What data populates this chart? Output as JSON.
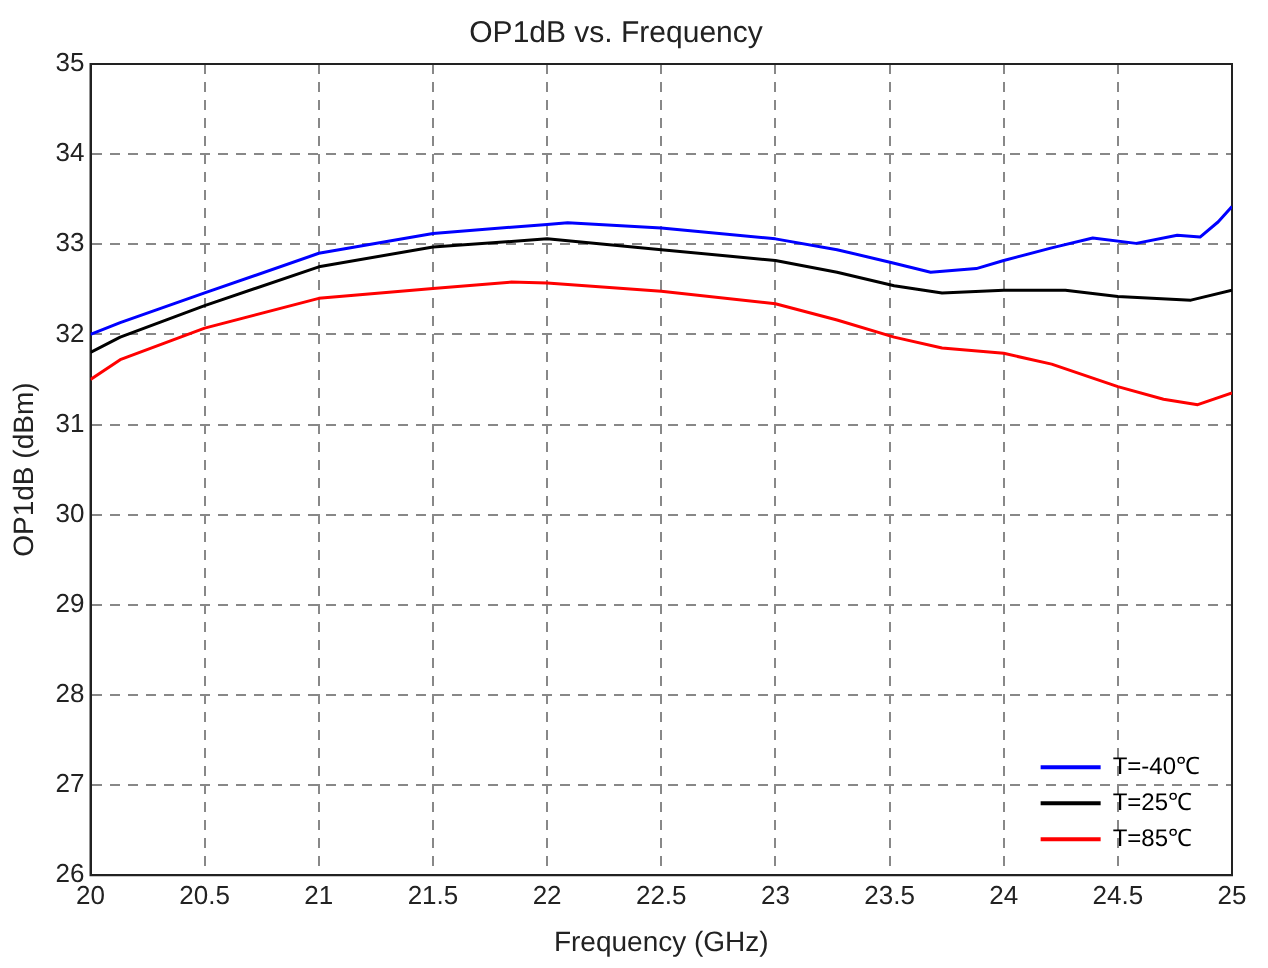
{
  "chart_data": {
    "type": "line",
    "title": "OP1dB vs. Frequency",
    "xlabel": "Frequency (GHz)",
    "ylabel": "OP1dB (dBm)",
    "xlim": [
      20,
      25
    ],
    "xticks": [
      20,
      20.5,
      21,
      21.5,
      22,
      22.5,
      23,
      23.5,
      24,
      24.5,
      25
    ],
    "ylim": [
      26,
      35
    ],
    "yticks": [
      26,
      27,
      28,
      29,
      30,
      31,
      32,
      33,
      34,
      35
    ],
    "grid": true,
    "legend": "bottom right",
    "marker": "none",
    "line_style": "solid",
    "series": [
      {
        "name": "T=-40℃",
        "color": "#0000ff",
        "x": [
          20,
          20.13,
          20.5,
          21,
          21.5,
          22,
          22.09,
          22.5,
          23,
          23.27,
          23.52,
          23.68,
          23.88,
          24,
          24.21,
          24.39,
          24.58,
          24.76,
          24.86,
          24.94,
          25
        ],
        "values": [
          32,
          32.13,
          32.46,
          32.9,
          33.12,
          33.22,
          33.24,
          33.18,
          33.06,
          32.94,
          32.79,
          32.69,
          32.73,
          32.82,
          32.96,
          33.07,
          33.01,
          33.1,
          33.08,
          33.25,
          33.42
        ]
      },
      {
        "name": "T=25℃",
        "color": "#000000",
        "x": [
          20,
          20.13,
          20.5,
          21,
          21.5,
          22,
          22.5,
          23,
          23.27,
          23.52,
          23.73,
          24,
          24.27,
          24.5,
          24.82,
          25
        ],
        "values": [
          31.8,
          31.97,
          32.32,
          32.75,
          32.97,
          33.06,
          32.94,
          32.82,
          32.69,
          32.54,
          32.46,
          32.49,
          32.49,
          32.42,
          32.38,
          32.49
        ]
      },
      {
        "name": "T=85℃",
        "color": "#ff0000",
        "x": [
          20,
          20.13,
          20.5,
          21,
          21.5,
          21.84,
          22,
          22.5,
          23,
          23.27,
          23.52,
          23.73,
          24,
          24.21,
          24.5,
          24.7,
          24.85,
          25
        ],
        "values": [
          31.5,
          31.72,
          32.07,
          32.4,
          32.51,
          32.58,
          32.57,
          32.48,
          32.34,
          32.16,
          31.97,
          31.85,
          31.79,
          31.67,
          31.42,
          31.28,
          31.22,
          31.35
        ]
      }
    ]
  }
}
